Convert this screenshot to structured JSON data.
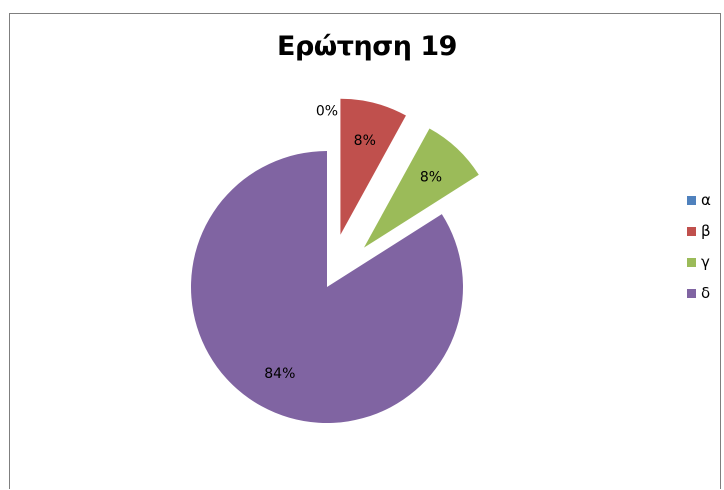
{
  "chart_data": {
    "type": "pie",
    "title": "Ερώτηση 19",
    "categories": [
      "α",
      "β",
      "γ",
      "δ"
    ],
    "values": [
      0,
      8,
      8,
      84
    ],
    "data_labels": [
      "0%",
      "8%",
      "8%",
      "84%"
    ],
    "colors": [
      "#4f81bd",
      "#c0504d",
      "#9bbb59",
      "#8064a2"
    ],
    "exploded": [
      true,
      true,
      true,
      false
    ],
    "start_angle_deg": 0,
    "direction": "clockwise",
    "legend_position": "right"
  }
}
